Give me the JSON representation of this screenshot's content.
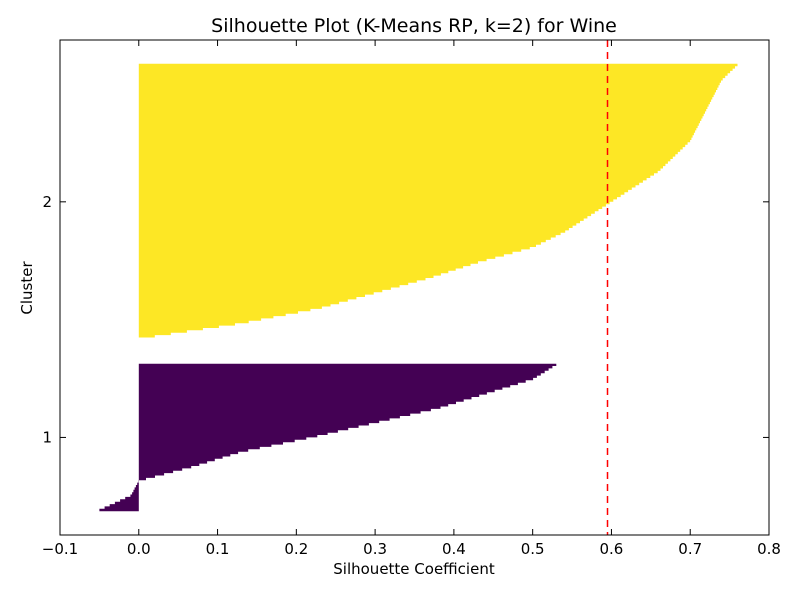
{
  "chart_data": {
    "type": "silhouette",
    "title": "Silhouette Plot (K-Means RP, k=2) for Wine",
    "xlabel": "Silhouette Coefficient",
    "ylabel": "Cluster",
    "xlim": [
      -0.1,
      0.8
    ],
    "x_ticks": [
      "−0.1",
      "0.0",
      "0.1",
      "0.2",
      "0.3",
      "0.4",
      "0.5",
      "0.6",
      "0.7",
      "0.8"
    ],
    "y_ticks": [
      "1",
      "2"
    ],
    "average_silhouette": 0.595,
    "average_line_color": "#ff0000",
    "grid": false,
    "clusters": [
      {
        "label": "1",
        "color": "#440154",
        "count": 62,
        "sorted_scores_low_to_high": [
          -0.05,
          -0.01,
          0.0,
          0.07,
          0.13,
          0.22,
          0.3,
          0.38,
          0.44,
          0.5,
          0.53
        ]
      },
      {
        "label": "2",
        "color": "#fde725",
        "count": 116,
        "sorted_scores_low_to_high": [
          0.0,
          0.13,
          0.23,
          0.3,
          0.37,
          0.43,
          0.5,
          0.54,
          0.57,
          0.6,
          0.63,
          0.66,
          0.68,
          0.7,
          0.71,
          0.72,
          0.73,
          0.74,
          0.76
        ]
      }
    ]
  }
}
